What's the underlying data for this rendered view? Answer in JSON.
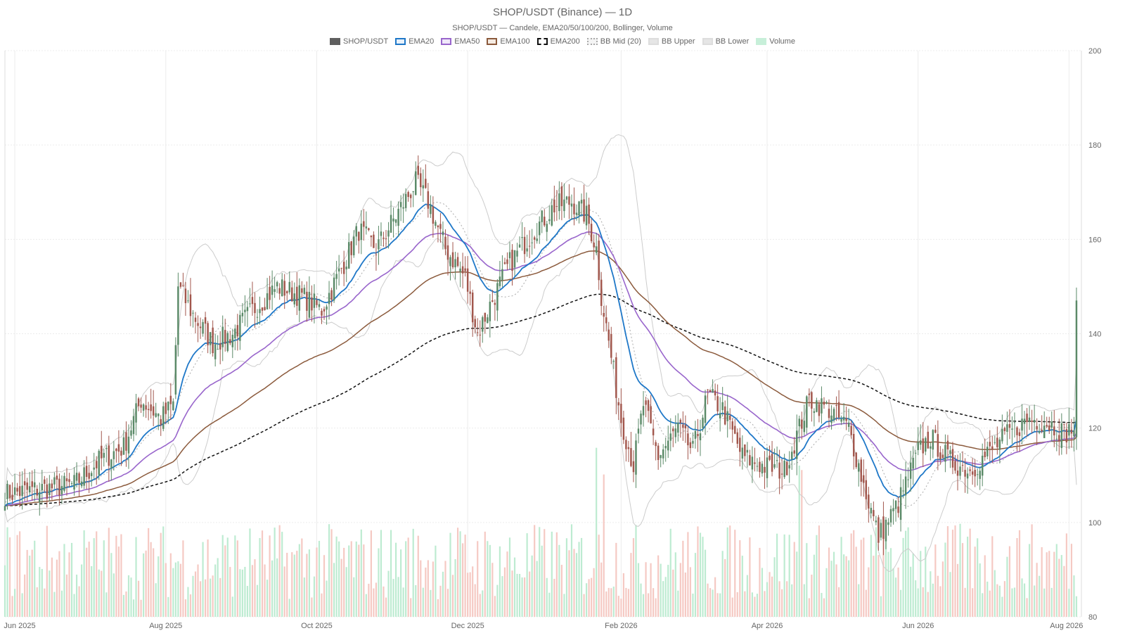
{
  "chart_data": {
    "type": "candlestick",
    "title": "SHOP/USDT (Binance) — 1D",
    "subtitle": "SHOP/USDT — Candele, EMA20/50/100/200, Bollinger, Volume",
    "legend": [
      {
        "key": "candles",
        "label": "SHOP/USDT",
        "fill": "#5f5f5f",
        "border": "#5f5f5f",
        "style": "solid"
      },
      {
        "key": "ema20",
        "label": "EMA20",
        "fill": "#e8f1fb",
        "border": "#1f78c8",
        "style": "solid"
      },
      {
        "key": "ema50",
        "label": "EMA50",
        "fill": "#f0e8fa",
        "border": "#9966cc",
        "style": "solid"
      },
      {
        "key": "ema100",
        "label": "EMA100",
        "fill": "#f5ebe2",
        "border": "#8b5a3c",
        "style": "solid"
      },
      {
        "key": "ema200",
        "label": "EMA200",
        "fill": "#ffffff",
        "border": "#111111",
        "style": "dashed"
      },
      {
        "key": "bbmid",
        "label": "BB Mid (20)",
        "fill": "#f4f4f4",
        "border": "#aaaaaa",
        "style": "dotted"
      },
      {
        "key": "bbupper",
        "label": "BB Upper",
        "fill": "#e6e6e6",
        "border": "#dddddd",
        "style": "solid"
      },
      {
        "key": "bblower",
        "label": "BB Lower",
        "fill": "#e6e6e6",
        "border": "#dddddd",
        "style": "solid"
      },
      {
        "key": "volume",
        "label": "Volume",
        "fill": "#c7efd9",
        "border": "#c7efd9",
        "style": "solid"
      }
    ],
    "colors": {
      "up": "#5b8a68",
      "down": "#a2574d",
      "ema20": "#1f78c8",
      "ema50": "#9966cc",
      "ema100": "#8b5a3c",
      "ema200": "#111111",
      "bbmid": "#aaaaaa",
      "bbband": "#cccccc",
      "volume_up": "#bdebd1",
      "volume_down": "#f5c9c3",
      "grid": "#ececec"
    },
    "y_axis": {
      "min": 80,
      "max": 200,
      "ticks": [
        80,
        100,
        120,
        140,
        160,
        180,
        200
      ],
      "position": "right"
    },
    "x_axis": {
      "start": "2025-05-28",
      "end": "2026-08-06",
      "ticks": [
        {
          "date": "2025-06-01",
          "label": "Jun 2025"
        },
        {
          "date": "2025-08-01",
          "label": "Aug 2025"
        },
        {
          "date": "2025-10-01",
          "label": "Oct 2025"
        },
        {
          "date": "2025-12-01",
          "label": "Dec 2025"
        },
        {
          "date": "2026-02-01",
          "label": "Feb 2026"
        },
        {
          "date": "2026-04-01",
          "label": "Apr 2026"
        },
        {
          "date": "2026-06-01",
          "label": "Jun 2026"
        },
        {
          "date": "2026-08-01",
          "label": "Aug 2026"
        }
      ]
    },
    "price_anchors": [
      [
        "2025-05-28",
        106
      ],
      [
        "2025-06-10",
        107
      ],
      [
        "2025-06-25",
        108
      ],
      [
        "2025-07-05",
        113
      ],
      [
        "2025-07-15",
        116
      ],
      [
        "2025-07-22",
        126
      ],
      [
        "2025-07-30",
        122
      ],
      [
        "2025-08-04",
        125
      ],
      [
        "2025-08-06",
        150
      ],
      [
        "2025-08-12",
        144
      ],
      [
        "2025-08-20",
        138
      ],
      [
        "2025-08-28",
        140
      ],
      [
        "2025-09-05",
        145
      ],
      [
        "2025-09-15",
        150
      ],
      [
        "2025-09-25",
        148
      ],
      [
        "2025-10-03",
        145
      ],
      [
        "2025-10-12",
        155
      ],
      [
        "2025-10-18",
        162
      ],
      [
        "2025-10-25",
        158
      ],
      [
        "2025-11-02",
        165
      ],
      [
        "2025-11-10",
        172
      ],
      [
        "2025-11-15",
        168
      ],
      [
        "2025-11-22",
        158
      ],
      [
        "2025-11-30",
        152
      ],
      [
        "2025-12-05",
        140
      ],
      [
        "2025-12-10",
        146
      ],
      [
        "2025-12-18",
        155
      ],
      [
        "2025-12-28",
        162
      ],
      [
        "2026-01-05",
        167
      ],
      [
        "2026-01-12",
        168
      ],
      [
        "2026-01-18",
        165
      ],
      [
        "2026-01-22",
        158
      ],
      [
        "2026-01-24",
        148
      ],
      [
        "2026-01-28",
        135
      ],
      [
        "2026-02-01",
        122
      ],
      [
        "2026-02-06",
        112
      ],
      [
        "2026-02-10",
        125
      ],
      [
        "2026-02-16",
        114
      ],
      [
        "2026-02-24",
        120
      ],
      [
        "2026-03-02",
        115
      ],
      [
        "2026-03-08",
        127
      ],
      [
        "2026-03-14",
        124
      ],
      [
        "2026-03-22",
        114
      ],
      [
        "2026-03-30",
        112
      ],
      [
        "2026-04-08",
        111
      ],
      [
        "2026-04-18",
        126
      ],
      [
        "2026-04-26",
        124
      ],
      [
        "2026-05-04",
        120
      ],
      [
        "2026-05-10",
        108
      ],
      [
        "2026-05-16",
        97
      ],
      [
        "2026-05-24",
        104
      ],
      [
        "2026-06-01",
        115
      ],
      [
        "2026-06-06",
        118
      ],
      [
        "2026-06-14",
        113
      ],
      [
        "2026-06-22",
        111
      ],
      [
        "2026-06-30",
        115
      ],
      [
        "2026-07-08",
        119
      ],
      [
        "2026-07-16",
        122
      ],
      [
        "2026-07-24",
        121
      ],
      [
        "2026-07-30",
        119
      ],
      [
        "2026-08-03",
        120
      ],
      [
        "2026-08-04",
        145
      ]
    ],
    "volume_range": [
      20,
      110
    ],
    "volume_spikes": [
      [
        "2026-01-22",
        190
      ],
      [
        "2026-01-25",
        160
      ],
      [
        "2026-04-14",
        170
      ],
      [
        "2026-04-15",
        165
      ]
    ]
  }
}
